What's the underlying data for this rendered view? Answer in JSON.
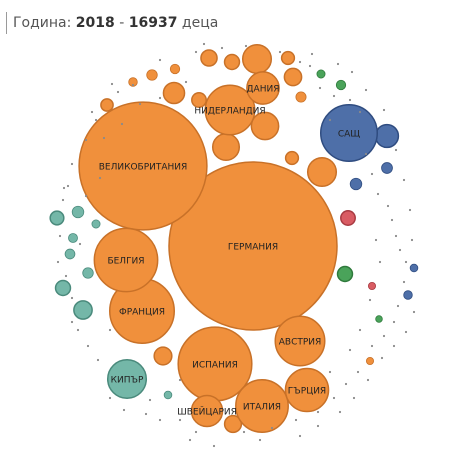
{
  "header": {
    "year_label": "Година:",
    "year": "2018",
    "separator": "-",
    "count": "16937",
    "unit": "деца"
  },
  "colors": {
    "europe": "#f0903c",
    "europe_stroke": "#c87128",
    "north_america": "#4e6fa8",
    "north_america_stroke": "#2f4c80",
    "teal": "#74b7a8",
    "teal_stroke": "#4a8a7c",
    "green": "#4aa35a",
    "green_stroke": "#2f7a3c",
    "red": "#d95c63",
    "red_stroke": "#a83b42",
    "grey": "#8a8a8a"
  },
  "chart_data": {
    "type": "bubble",
    "title": "",
    "value_scale": "bubble area proportional to number of children",
    "labeled_bubbles": [
      {
        "label": "ГЕРМАНИЯ",
        "value": 3800,
        "group": "europe"
      },
      {
        "label": "ВЕЛИКОБРИТАНИЯ",
        "value": 2200,
        "group": "europe"
      },
      {
        "label": "ИСПАНИЯ",
        "value": 730,
        "group": "europe"
      },
      {
        "label": "ФРАНЦИЯ",
        "value": 560,
        "group": "europe"
      },
      {
        "label": "БЕЛГИЯ",
        "value": 540,
        "group": "europe"
      },
      {
        "label": "ИТАЛИЯ",
        "value": 370,
        "group": "europe"
      },
      {
        "label": "САЩ",
        "value": 430,
        "group": "north_america"
      },
      {
        "label": "НИДЕРЛАНДИЯ",
        "value": 330,
        "group": "europe"
      },
      {
        "label": "АВСТРИЯ",
        "value": 330,
        "group": "europe"
      },
      {
        "label": "ГЪРЦИЯ",
        "value": 250,
        "group": "europe"
      },
      {
        "label": "КИПЪР",
        "value": 200,
        "group": "teal"
      },
      {
        "label": "ДАНИЯ",
        "value": 140,
        "group": "europe"
      },
      {
        "label": "ШВЕЙЦАРИЯ",
        "value": 130,
        "group": "europe"
      }
    ],
    "unlabeled_bubbles": [
      {
        "value": 110,
        "group": "europe"
      },
      {
        "value": 110,
        "group": "europe"
      },
      {
        "value": 100,
        "group": "europe"
      },
      {
        "value": 95,
        "group": "europe"
      },
      {
        "value": 70,
        "group": "north_america"
      },
      {
        "value": 60,
        "group": "europe"
      },
      {
        "value": 60,
        "group": "teal"
      },
      {
        "value": 45,
        "group": "teal"
      },
      {
        "value": 42,
        "group": "europe"
      },
      {
        "value": 40,
        "group": "europe"
      },
      {
        "value": 38,
        "group": "europe"
      },
      {
        "value": 35,
        "group": "europe"
      },
      {
        "value": 30,
        "group": "green"
      },
      {
        "value": 30,
        "group": "teal"
      },
      {
        "value": 30,
        "group": "europe"
      },
      {
        "value": 28,
        "group": "europe"
      },
      {
        "value": 28,
        "group": "red"
      },
      {
        "value": 25,
        "group": "teal"
      },
      {
        "value": 22,
        "group": "europe"
      },
      {
        "value": 22,
        "group": "europe"
      },
      {
        "value": 20,
        "group": "europe"
      },
      {
        "value": 18,
        "group": "teal"
      },
      {
        "value": 18,
        "group": "north_america"
      },
      {
        "value": 16,
        "group": "north_america"
      },
      {
        "value": 15,
        "group": "europe"
      },
      {
        "value": 15,
        "group": "teal"
      },
      {
        "value": 14,
        "group": "europe"
      },
      {
        "value": 13,
        "group": "teal"
      },
      {
        "value": 12,
        "group": "green"
      },
      {
        "value": 12,
        "group": "europe"
      },
      {
        "value": 11,
        "group": "teal"
      },
      {
        "value": 10,
        "group": "north_america"
      },
      {
        "value": 10,
        "group": "europe"
      },
      {
        "value": 9,
        "group": "teal"
      },
      {
        "value": 9,
        "group": "green"
      },
      {
        "value": 8,
        "group": "north_america"
      },
      {
        "value": 8,
        "group": "teal"
      },
      {
        "value": 7,
        "group": "red"
      },
      {
        "value": 7,
        "group": "europe"
      },
      {
        "value": 6,
        "group": "green"
      }
    ]
  }
}
